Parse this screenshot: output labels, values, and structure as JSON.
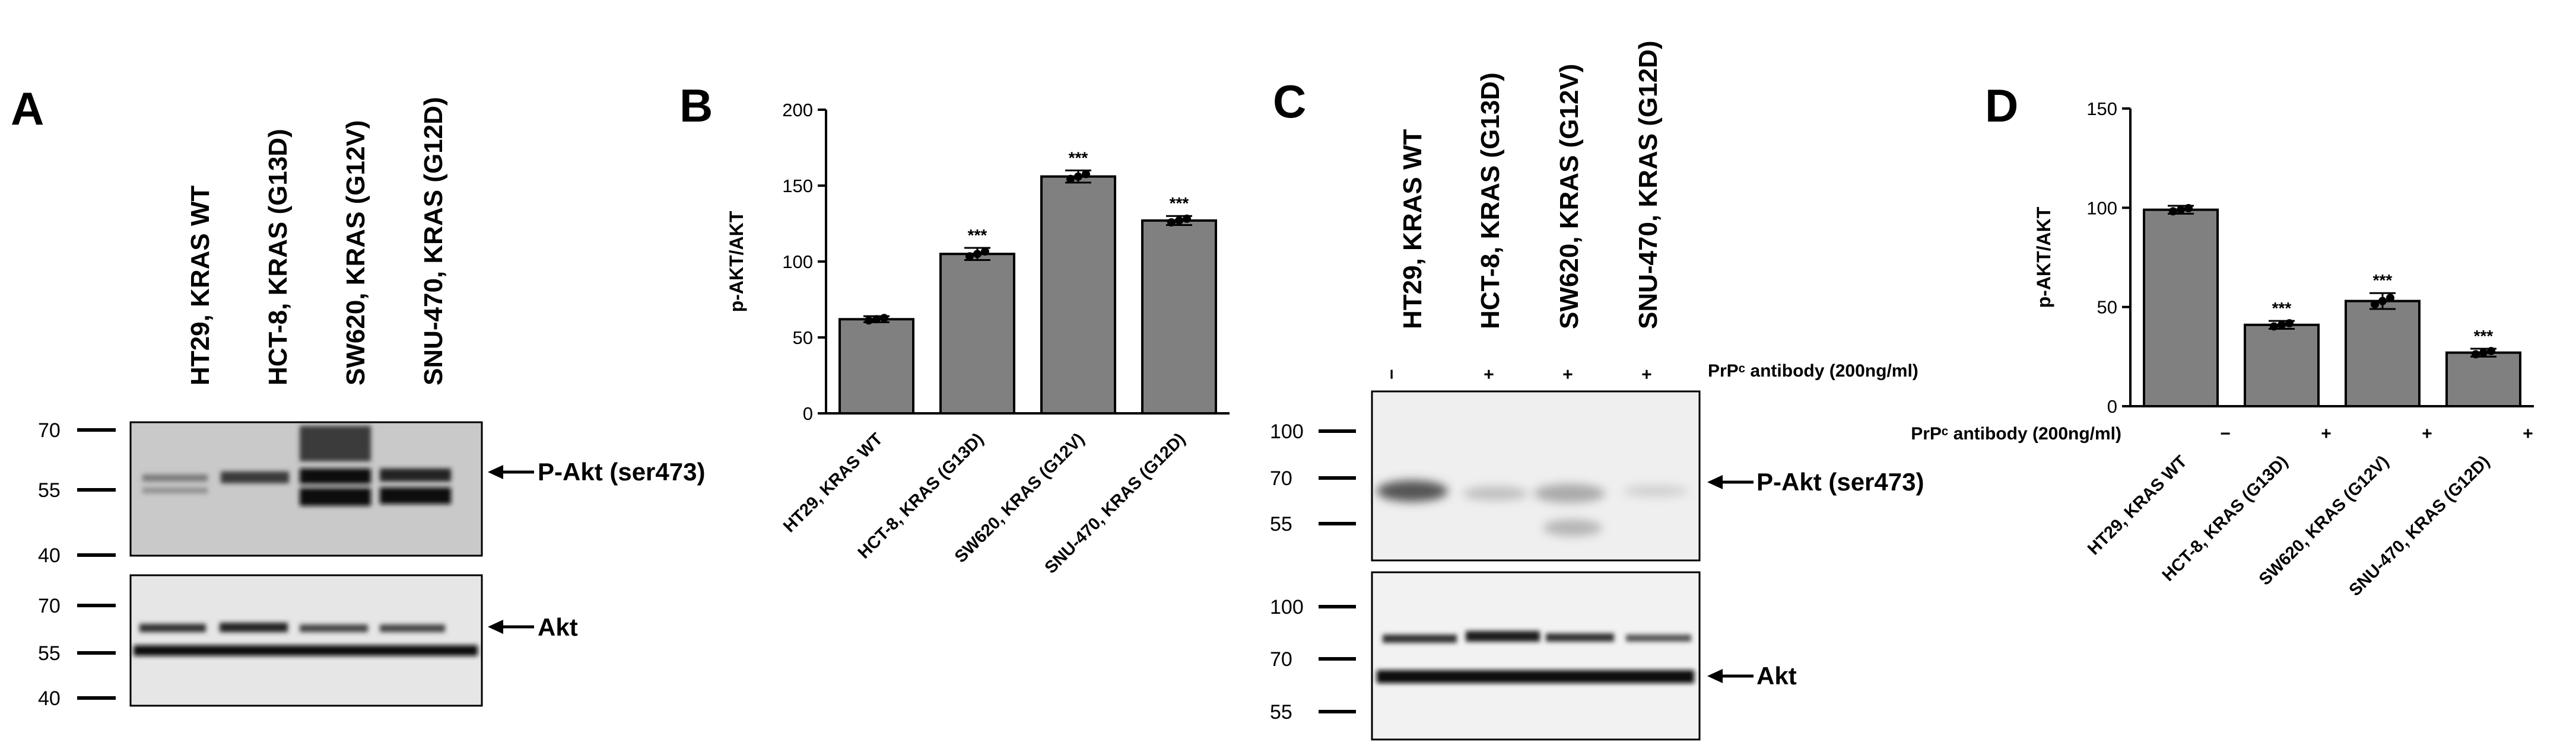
{
  "panels": {
    "A": "A",
    "B": "B",
    "C": "C",
    "D": "D"
  },
  "blot_a": {
    "lanes": [
      "HT29, KRAS WT",
      "HCT-8, KRAS (G13D)",
      "SW620, KRAS (G12V)",
      "SNU-470, KRAS (G12D)"
    ],
    "upper_markers": [
      "70",
      "55",
      "40"
    ],
    "lower_markers": [
      "70",
      "55",
      "40"
    ],
    "upper_band_label": "P-Akt (ser473)",
    "lower_band_label": "Akt"
  },
  "blot_c": {
    "lanes": [
      "HT29, KRAS WT",
      "HCT-8, KRAS (G13D)",
      "SW620, KRAS (G12V)",
      "SNU-470, KRAS (G12D)"
    ],
    "treatment_marks": [
      "−",
      "+",
      "+",
      "+"
    ],
    "treatment_label": "PrPᶜ antibody (200ng/ml)",
    "upper_markers": [
      "100",
      "70",
      "55"
    ],
    "lower_markers": [
      "100",
      "70",
      "55"
    ],
    "upper_band_label": "P-Akt (ser473)",
    "lower_band_label": "Akt"
  },
  "chart_data": [
    {
      "type": "bar",
      "panel": "B",
      "categories": [
        "HT29,  KRAS WT",
        "HCT-8,  KRAS (G13D)",
        "SW620,  KRAS (G12V)",
        "SNU-470,  KRAS (G12D)"
      ],
      "values": [
        62,
        105,
        156,
        127
      ],
      "errors": [
        2,
        4,
        4,
        3
      ],
      "significance": [
        "",
        "***",
        "***",
        "***"
      ],
      "ylabel": "p-AKT/AKT",
      "ylim": [
        0,
        200
      ],
      "yticks": [
        "0",
        "50",
        "100",
        "150",
        "200"
      ],
      "bar_color": "#808080"
    },
    {
      "type": "bar",
      "panel": "D",
      "categories": [
        "HT29,  KRAS WT",
        "HCT-8,  KRAS (G13D)",
        "SW620,  KRAS (G12V)",
        "SNU-470,  KRAS (G12D)"
      ],
      "values": [
        99,
        41,
        53,
        27
      ],
      "errors": [
        2,
        2,
        4,
        2
      ],
      "significance": [
        "",
        "***",
        "***",
        "***"
      ],
      "treatment_marks": [
        "−",
        "+",
        "+",
        "+"
      ],
      "treatment_label": "PrPᶜ antibody (200ng/ml)",
      "ylabel": "p-AKT/AKT",
      "ylim": [
        0,
        150
      ],
      "yticks": [
        "0",
        "50",
        "100",
        "150"
      ],
      "bar_color": "#808080"
    }
  ]
}
